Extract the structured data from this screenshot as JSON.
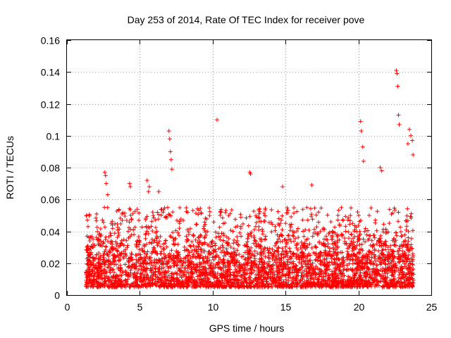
{
  "chart_data": {
    "type": "scatter",
    "title": "Day 253 of 2014, Rate Of TEC Index for receiver pove",
    "xlabel": "GPS time / hours",
    "ylabel": "ROTI / TECUs",
    "xlim": [
      0,
      25
    ],
    "ylim": [
      0,
      0.16
    ],
    "xticks": [
      0,
      5,
      10,
      15,
      20,
      25
    ],
    "xtick_labels": [
      "0",
      "5",
      "10",
      "15",
      "20",
      "25"
    ],
    "yticks": [
      0,
      0.02,
      0.04,
      0.06,
      0.08,
      0.1,
      0.12,
      0.14,
      0.16
    ],
    "ytick_labels": [
      "0",
      "0.02",
      "0.04",
      "0.06",
      "0.08",
      "0.1",
      "0.12",
      "0.14",
      "0.16"
    ],
    "grid": true,
    "marker": "+",
    "color": "#ff0000",
    "series": [
      {
        "name": "ROTI",
        "x_range_hours": [
          1.3,
          23.8
        ],
        "dense_band": [
          0.005,
          0.04
        ],
        "x": [
          1.35,
          1.4,
          1.45,
          2.6,
          2.65,
          2.7,
          2.8,
          4.3,
          4.35,
          5.5,
          5.6,
          5.65,
          6.3,
          7.0,
          7.05,
          7.1,
          7.15,
          7.2,
          10.3,
          12.55,
          12.6,
          14.8,
          16.8,
          20.15,
          20.2,
          20.3,
          20.35,
          21.5,
          21.6,
          22.6,
          22.65,
          22.7,
          22.75,
          22.8,
          23.4,
          23.5,
          23.6,
          23.7,
          23.75
        ],
        "y": [
          0.05,
          0.047,
          0.043,
          0.077,
          0.075,
          0.07,
          0.063,
          0.07,
          0.068,
          0.072,
          0.065,
          0.068,
          0.065,
          0.103,
          0.098,
          0.09,
          0.085,
          0.079,
          0.11,
          0.077,
          0.076,
          0.068,
          0.069,
          0.109,
          0.103,
          0.093,
          0.084,
          0.08,
          0.078,
          0.141,
          0.139,
          0.131,
          0.113,
          0.107,
          0.095,
          0.104,
          0.1,
          0.097,
          0.088
        ]
      }
    ]
  }
}
